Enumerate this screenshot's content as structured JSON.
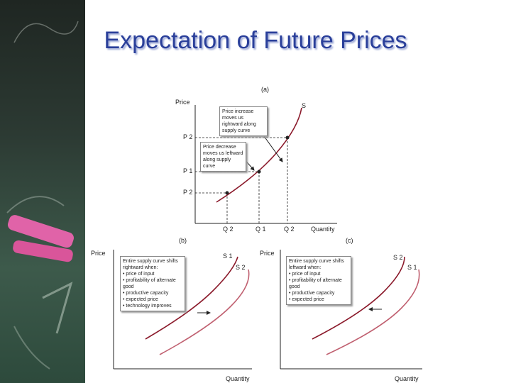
{
  "slide": {
    "title": "Expectation of Future Prices"
  },
  "panel_a": {
    "label": "(a)",
    "y_axis": "Price",
    "x_axis": "Quantity",
    "curve": "S",
    "p_labels": [
      "P 2",
      "P 1",
      "P 2"
    ],
    "q_labels": [
      "Q 2",
      "Q 1",
      "Q 2"
    ],
    "note_increase": "Price increase moves us rightward along supply curve",
    "note_decrease": "Price decrease moves us leftward along supply curve"
  },
  "panel_b": {
    "label": "(b)",
    "y_axis": "Price",
    "x_axis": "Quantity",
    "curve_1": "S 1",
    "curve_2": "S 2",
    "note_heading": "Entire supply curve shifts rightward when:",
    "note_items": [
      "• price of input",
      "• profitability of alternate good",
      "• productive capacity",
      "• expected price",
      "• technology improves"
    ]
  },
  "panel_c": {
    "label": "(c)",
    "y_axis": "Price",
    "x_axis": "Quantity",
    "curve_1": "S 2",
    "curve_2": "S 1",
    "note_heading": "Entire supply curve shifts leftward when:",
    "note_items": [
      "• price of input",
      "• profitability of alternate good",
      "• productive capacity",
      "• expected price"
    ]
  },
  "colors": {
    "title": "#2a3f9a",
    "curve_dark": "#8b1a2b",
    "curve_light": "#c06070",
    "axis": "#222222"
  }
}
